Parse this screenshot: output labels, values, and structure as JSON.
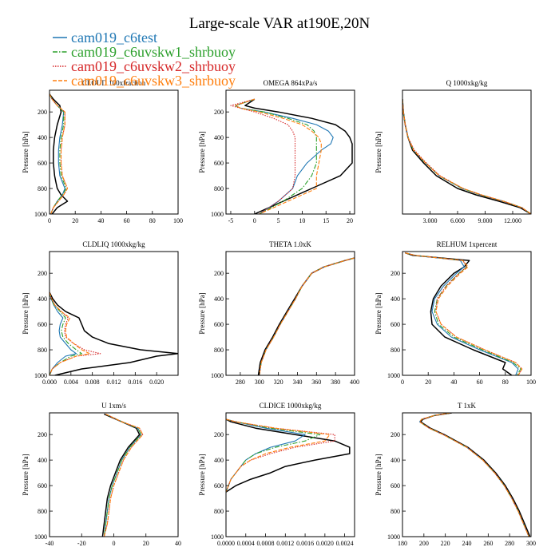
{
  "figure": {
    "title": "Large-scale VAR at190E,20N"
  },
  "legend": [
    {
      "name": "cam019_c6test",
      "color": "#1f77b4",
      "dash": "solid"
    },
    {
      "name": "cam019_c6uvskw1_shrbuoy",
      "color": "#2ca02c",
      "dash": "dashdot"
    },
    {
      "name": "cam019_c6uvskw2_shrbuoy",
      "color": "#d62728",
      "dash": "dotted"
    },
    {
      "name": "cam019_c6uvskw3_shrbuoy",
      "color": "#ff7f0e",
      "dash": "dashed"
    },
    {
      "name": "",
      "color": "#000000",
      "dash": "solid"
    }
  ],
  "chart_data": [
    {
      "type": "line",
      "title": "CLOUD 100xfraction",
      "ylabel": "Pressure [hPa]",
      "xlim": [
        0,
        100
      ],
      "ylim": [
        1000,
        30
      ],
      "xticks": [
        "0",
        "20",
        "40",
        "60",
        "80",
        "100"
      ],
      "yticks": [
        "200",
        "400",
        "600",
        "800",
        "1000"
      ],
      "y": [
        60,
        100,
        150,
        200,
        300,
        400,
        500,
        600,
        700,
        750,
        800,
        850,
        900,
        950,
        1000
      ],
      "series": [
        {
          "values": [
            0,
            2,
            6,
            11,
            10,
            8,
            7,
            7,
            8,
            10,
            12,
            10,
            6,
            3,
            1
          ]
        },
        {
          "values": [
            0,
            2,
            6,
            11,
            11,
            9,
            8,
            8,
            9,
            11,
            13,
            10,
            6,
            3,
            1
          ]
        },
        {
          "values": [
            0,
            2,
            6,
            12,
            12,
            10,
            9,
            9,
            10,
            12,
            14,
            11,
            7,
            3,
            1
          ]
        },
        {
          "values": [
            0,
            2,
            6,
            12,
            12,
            10,
            9,
            9,
            10,
            12,
            14,
            11,
            7,
            3,
            1
          ]
        },
        {
          "values": [
            0,
            3,
            8,
            9,
            6,
            4,
            3,
            3,
            4,
            5,
            6,
            9,
            14,
            6,
            2
          ]
        }
      ]
    },
    {
      "type": "line",
      "title": "OMEGA 864xPa/s",
      "ylabel": "Pressure [hPa]",
      "xlim": [
        -6,
        21
      ],
      "ylim": [
        1000,
        30
      ],
      "xticks": [
        "-5",
        "0",
        "5",
        "10",
        "15",
        "20"
      ],
      "yticks": [
        "200",
        "400",
        "600",
        "800",
        "1000"
      ],
      "y": [
        100,
        150,
        170,
        200,
        250,
        300,
        350,
        400,
        450,
        500,
        600,
        700,
        800,
        900,
        1000
      ],
      "series": [
        {
          "values": [
            0,
            -4,
            -3,
            2,
            8,
            13,
            15.5,
            16.5,
            16,
            14,
            11,
            9,
            8,
            5,
            1
          ]
        },
        {
          "values": [
            0,
            -4,
            -3,
            2,
            7,
            11,
            12.5,
            13,
            13,
            13,
            13,
            12,
            10,
            6,
            1
          ]
        },
        {
          "values": [
            0,
            -5,
            -3,
            0,
            4,
            7,
            8,
            8.5,
            8.5,
            8.5,
            8.5,
            8.5,
            8,
            5,
            1
          ]
        },
        {
          "values": [
            0,
            -4,
            -3,
            1,
            6,
            10,
            12,
            13.5,
            14,
            14,
            13.5,
            13,
            13,
            7,
            1
          ]
        },
        {
          "values": [
            0,
            -2,
            0,
            5,
            12,
            17,
            19,
            20,
            20.5,
            20.5,
            20.5,
            18,
            12,
            6,
            0
          ]
        }
      ]
    },
    {
      "type": "line",
      "title": "Q 1000xkg/kg",
      "ylabel": "Pressure [hPa]",
      "xlim": [
        0,
        14
      ],
      "ylim": [
        1000,
        30
      ],
      "xticks": [
        "3.000",
        "6.000",
        "9.000",
        "12.000"
      ],
      "y": [
        100,
        200,
        300,
        400,
        500,
        600,
        700,
        800,
        850,
        900,
        950,
        1000
      ],
      "series": [
        {
          "values": [
            0,
            0.1,
            0.3,
            0.6,
            1.2,
            2.5,
            4,
            6.5,
            8.5,
            11,
            13,
            14
          ]
        },
        {
          "values": [
            0,
            0.1,
            0.3,
            0.6,
            1.2,
            2.5,
            4,
            6.5,
            8.5,
            11,
            13,
            14
          ]
        },
        {
          "values": [
            0,
            0.1,
            0.3,
            0.6,
            1.3,
            2.6,
            4.1,
            6.6,
            8.6,
            11,
            13,
            14
          ]
        },
        {
          "values": [
            0,
            0.1,
            0.3,
            0.6,
            1.2,
            2.5,
            4,
            6.6,
            8.6,
            11,
            13,
            14
          ]
        },
        {
          "values": [
            0,
            0.1,
            0.3,
            0.6,
            1.1,
            2.3,
            3.7,
            6,
            8,
            10.5,
            12.8,
            14
          ]
        }
      ]
    },
    {
      "type": "line",
      "title": "CLDLIQ 1000xkg/kg",
      "ylabel": "Pressure [hPa]",
      "xlim": [
        0,
        0.024
      ],
      "ylim": [
        1000,
        30
      ],
      "xticks": [
        "0.000",
        "0.004",
        "0.008",
        "0.012",
        "0.016",
        "0.020"
      ],
      "yticks": [
        "200",
        "400",
        "600",
        "800",
        "1000"
      ],
      "y": [
        350,
        400,
        450,
        500,
        550,
        600,
        650,
        700,
        750,
        800,
        830,
        850,
        900,
        950,
        1000
      ],
      "series": [
        {
          "values": [
            0,
            0.0003,
            0.0008,
            0.0015,
            0.0025,
            0.002,
            0.0018,
            0.002,
            0.003,
            0.004,
            0.005,
            0.003,
            0.0015,
            0.0005,
            0
          ]
        },
        {
          "values": [
            0,
            0.0003,
            0.0009,
            0.002,
            0.003,
            0.0025,
            0.0022,
            0.0025,
            0.0035,
            0.005,
            0.006,
            0.004,
            0.002,
            0.0005,
            0
          ]
        },
        {
          "values": [
            0,
            0.0004,
            0.001,
            0.0022,
            0.0035,
            0.003,
            0.0028,
            0.003,
            0.0045,
            0.0065,
            0.0095,
            0.005,
            0.002,
            0.0005,
            0
          ]
        },
        {
          "values": [
            0,
            0.0004,
            0.001,
            0.0022,
            0.0038,
            0.0032,
            0.003,
            0.0032,
            0.0045,
            0.006,
            0.0075,
            0.005,
            0.002,
            0.0005,
            0
          ]
        },
        {
          "values": [
            0,
            0.0006,
            0.0015,
            0.003,
            0.0055,
            0.006,
            0.0065,
            0.008,
            0.011,
            0.017,
            0.024,
            0.02,
            0.015,
            0.006,
            0.001
          ]
        }
      ]
    },
    {
      "type": "line",
      "title": "THETA 1.0xK",
      "ylabel": "Pressure [hPa]",
      "xlim": [
        265,
        400
      ],
      "ylim": [
        1000,
        30
      ],
      "xticks": [
        "280",
        "300",
        "320",
        "340",
        "360",
        "380",
        "400"
      ],
      "yticks": [
        "200",
        "400",
        "600",
        "800",
        "1000"
      ],
      "y": [
        80,
        100,
        150,
        200,
        300,
        400,
        500,
        600,
        700,
        800,
        900,
        1000
      ],
      "series": [
        {
          "values": [
            400,
            390,
            368,
            355,
            345,
            338,
            330,
            322,
            315,
            307,
            302,
            300
          ]
        },
        {
          "values": [
            400,
            390,
            368,
            355,
            345,
            338,
            330,
            322,
            315,
            307,
            302,
            300
          ]
        },
        {
          "values": [
            400,
            390,
            368,
            355,
            345,
            338,
            330,
            322,
            315,
            307,
            302,
            300
          ]
        },
        {
          "values": [
            400,
            390,
            368,
            355,
            345,
            338,
            330,
            322,
            315,
            307,
            302,
            300
          ]
        },
        {
          "values": [
            400,
            390,
            368,
            355,
            345,
            337,
            329,
            321,
            314,
            306,
            301,
            299
          ]
        }
      ]
    },
    {
      "type": "line",
      "title": "RELHUM 1xpercent",
      "ylabel": "Pressure [hPa]",
      "xlim": [
        0,
        100
      ],
      "ylim": [
        1000,
        30
      ],
      "xticks": [
        "0",
        "20",
        "40",
        "60",
        "80",
        "100"
      ],
      "yticks": [
        "200",
        "400",
        "600",
        "800",
        "1000"
      ],
      "y": [
        40,
        60,
        100,
        150,
        200,
        300,
        400,
        500,
        600,
        700,
        800,
        900,
        950,
        1000
      ],
      "series": [
        {
          "values": [
            2,
            10,
            45,
            48,
            42,
            32,
            25,
            23,
            27,
            38,
            60,
            85,
            90,
            88
          ]
        },
        {
          "values": [
            2,
            10,
            47,
            50,
            44,
            34,
            27,
            25,
            28,
            40,
            62,
            86,
            92,
            89
          ]
        },
        {
          "values": [
            2,
            10,
            47,
            50,
            44,
            34,
            27,
            26,
            30,
            42,
            64,
            88,
            93,
            90
          ]
        },
        {
          "values": [
            2,
            10,
            47,
            51,
            45,
            35,
            28,
            26,
            30,
            42,
            64,
            88,
            93,
            90
          ]
        },
        {
          "values": [
            2,
            8,
            52,
            48,
            40,
            30,
            24,
            22,
            23,
            33,
            55,
            80,
            78,
            85
          ]
        }
      ]
    },
    {
      "type": "line",
      "title": "U 1xm/s",
      "ylabel": "Pressure [hPa]",
      "xlim": [
        -40,
        40
      ],
      "ylim": [
        1000,
        30
      ],
      "xticks": [
        "-40",
        "-20",
        "0",
        "20",
        "40"
      ],
      "yticks": [
        "200",
        "400",
        "600",
        "800",
        "1000"
      ],
      "y": [
        40,
        100,
        150,
        200,
        300,
        400,
        500,
        600,
        700,
        800,
        900,
        1000
      ],
      "series": [
        {
          "values": [
            -5,
            5,
            15,
            17,
            10,
            5,
            2,
            -1,
            -3,
            -4,
            -5,
            -6
          ]
        },
        {
          "values": [
            -5,
            5,
            15,
            17,
            10,
            5,
            2,
            -1,
            -3,
            -4,
            -5,
            -6
          ]
        },
        {
          "values": [
            -5,
            5,
            16,
            18,
            11,
            6,
            3,
            0,
            -2,
            -3,
            -4,
            -6
          ]
        },
        {
          "values": [
            -5,
            5,
            16,
            18,
            11,
            6,
            3,
            0,
            -2,
            -3,
            -4,
            -6
          ]
        },
        {
          "values": [
            -6,
            5,
            14,
            16,
            9,
            4,
            1,
            -2,
            -4,
            -5,
            -6,
            -7
          ]
        }
      ]
    },
    {
      "type": "line",
      "title": "CLDICE 1000xkg/kg",
      "ylabel": "Pressure [hPa]",
      "xlim": [
        0,
        0.0026
      ],
      "ylim": [
        1000,
        30
      ],
      "xticks": [
        "0.0000",
        "0.0004",
        "0.0008",
        "0.0012",
        "0.0016",
        "0.0020",
        "0.0024"
      ],
      "yticks": [
        "200",
        "400",
        "600",
        "800",
        "1000"
      ],
      "y": [
        80,
        100,
        150,
        200,
        250,
        300,
        350,
        400,
        450,
        500,
        550,
        600,
        650
      ],
      "series": [
        {
          "values": [
            0,
            0.0002,
            0.0008,
            0.0016,
            0.0014,
            0.0009,
            0.0006,
            0.0004,
            0.0003,
            0.0002,
            0.0001,
            5e-05,
            0
          ]
        },
        {
          "values": [
            0,
            0.0002,
            0.0009,
            0.0019,
            0.0016,
            0.001,
            0.0006,
            0.0004,
            0.0003,
            0.0002,
            0.0001,
            5e-05,
            0
          ]
        },
        {
          "values": [
            0,
            0.0002,
            0.001,
            0.0022,
            0.0022,
            0.0014,
            0.0009,
            0.0005,
            0.0003,
            0.0002,
            0.0001,
            5e-05,
            0
          ]
        },
        {
          "values": [
            0,
            0.0002,
            0.001,
            0.0021,
            0.002,
            0.0013,
            0.0008,
            0.0005,
            0.0003,
            0.0002,
            0.0001,
            5e-05,
            0
          ]
        },
        {
          "values": [
            0,
            0.0001,
            0.0006,
            0.0014,
            0.0022,
            0.0025,
            0.0025,
            0.0018,
            0.0012,
            0.0009,
            0.0005,
            0.0002,
            0
          ]
        }
      ]
    },
    {
      "type": "line",
      "title": "T 1xK",
      "ylabel": "Pressure [hPa]",
      "xlim": [
        180,
        300
      ],
      "ylim": [
        1000,
        30
      ],
      "xticks": [
        "180",
        "200",
        "220",
        "240",
        "260",
        "280",
        "300"
      ],
      "yticks": [
        "200",
        "400",
        "600",
        "800",
        "1000"
      ],
      "y": [
        30,
        50,
        80,
        100,
        150,
        200,
        300,
        400,
        500,
        600,
        700,
        800,
        900,
        1000
      ],
      "series": [
        {
          "values": [
            225,
            210,
            198,
            196,
            205,
            218,
            240,
            255,
            266,
            275,
            282,
            288,
            293,
            298
          ]
        },
        {
          "values": [
            225,
            210,
            198,
            196,
            205,
            218,
            240,
            255,
            266,
            275,
            282,
            288,
            293,
            298
          ]
        },
        {
          "values": [
            225,
            210,
            198,
            196,
            205,
            218,
            240,
            255,
            266,
            275,
            282,
            288,
            293,
            298
          ]
        },
        {
          "values": [
            225,
            210,
            198,
            196,
            205,
            218,
            240,
            255,
            266,
            275,
            282,
            288,
            293,
            298
          ]
        },
        {
          "values": [
            226,
            210,
            199,
            197,
            206,
            219,
            241,
            256,
            267,
            276,
            283,
            289,
            294,
            299
          ]
        }
      ]
    }
  ]
}
